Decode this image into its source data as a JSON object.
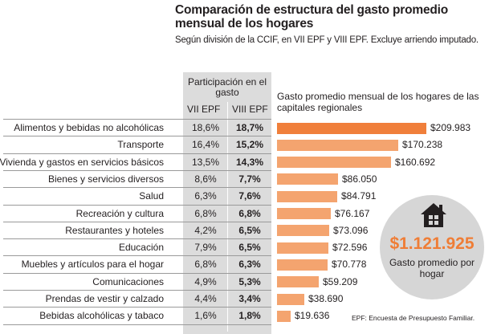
{
  "title": "Comparación de estructura del gasto promedio mensual de los hogares",
  "subtitle": "Según división de la CCIF, en VII EPF y VIII EPF. Excluye arriendo imputado.",
  "table_header": "Participación en el gasto",
  "col_vii": "VII EPF",
  "col_viii": "VIII EPF",
  "bar_header": "Gasto promedio mensual de los hogares de las capitales regionales",
  "total_amount": "$1.121.925",
  "total_label": "Gasto promedio por hogar",
  "footnote": "EPF: Encuesta de Presupuesto Familiar.",
  "colors": {
    "bar": "#f4a46f",
    "bar_top": "#f07f3b",
    "accent": "#ef7d36",
    "shade": "#dcdcdc"
  },
  "icons": [
    "house-icon"
  ],
  "chart_data": {
    "type": "bar",
    "orientation": "horizontal",
    "categories": [
      "Alimentos y bebidas no alcohólicas",
      "Transporte",
      "Vivienda y gastos en servicios básicos",
      "Bienes y servicios diversos",
      "Salud",
      "Recreación y cultura",
      "Restaurantes y hoteles",
      "Educación",
      "Muebles y artículos para el hogar",
      "Comunicaciones",
      "Prendas de vestir y calzado",
      "Bebidas alcohólicas y tabaco"
    ],
    "values": [
      209983,
      170238,
      160692,
      86050,
      84791,
      76167,
      73096,
      72596,
      70778,
      59209,
      38690,
      19636
    ],
    "value_labels": [
      "$209.983",
      "$170.238",
      "$160.692",
      "$86.050",
      "$84.791",
      "$76.167",
      "$73.096",
      "$72.596",
      "$70.778",
      "$59.209",
      "$38.690",
      "$19.636"
    ],
    "vii_epf": [
      "18,6%",
      "16,4%",
      "13,5%",
      "8,6%",
      "6,3%",
      "6,8%",
      "4,2%",
      "7,9%",
      "6,8%",
      "4,9%",
      "4,4%",
      "1,6%"
    ],
    "viii_epf": [
      "18,7%",
      "15,2%",
      "14,3%",
      "7,7%",
      "7,6%",
      "6,8%",
      "6,5%",
      "6,5%",
      "6,3%",
      "5,3%",
      "3,4%",
      "1,8%"
    ],
    "xlim": [
      0,
      209983
    ]
  }
}
